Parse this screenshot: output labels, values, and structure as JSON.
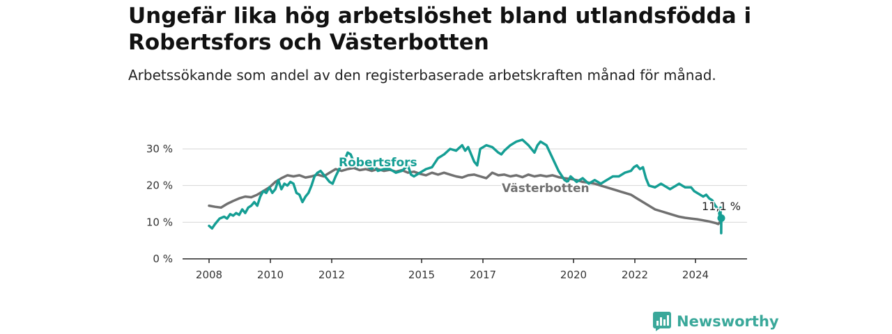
{
  "title": "Ungefär lika hög arbetslöshet bland utlandsfödda i Robertsfors och Västerbotten",
  "subtitle": "Arbetssökande som andel av den registerbaserade arbetskraften månad för månad.",
  "brand": {
    "name": "Newsworthy",
    "color": "#3aa89a",
    "icon": "newsworthy-logo-icon"
  },
  "chart_data": {
    "type": "line",
    "x_ticks": [
      "2008",
      "2010",
      "2012",
      "2015",
      "2017",
      "2020",
      "2022",
      "2024"
    ],
    "y_ticks": [
      "0 %",
      "10 %",
      "20 %",
      "30 %"
    ],
    "ylim": [
      0,
      30
    ],
    "xlim": [
      2008.0,
      2025.0
    ],
    "grid": true,
    "end_label": "11,1 %",
    "series": [
      {
        "name": "Robertsfors",
        "color": "#159e94",
        "points": [
          [
            2008.0,
            9.0
          ],
          [
            2008.1,
            8.3
          ],
          [
            2008.2,
            9.5
          ],
          [
            2008.35,
            11.0
          ],
          [
            2008.5,
            11.5
          ],
          [
            2008.6,
            11.0
          ],
          [
            2008.7,
            12.2
          ],
          [
            2008.8,
            11.8
          ],
          [
            2008.9,
            12.5
          ],
          [
            2009.0,
            12.0
          ],
          [
            2009.1,
            13.5
          ],
          [
            2009.2,
            12.5
          ],
          [
            2009.3,
            14.0
          ],
          [
            2009.4,
            14.5
          ],
          [
            2009.5,
            15.5
          ],
          [
            2009.6,
            14.5
          ],
          [
            2009.7,
            17.0
          ],
          [
            2009.8,
            18.5
          ],
          [
            2009.9,
            18.0
          ],
          [
            2010.0,
            19.5
          ],
          [
            2010.1,
            18.0
          ],
          [
            2010.2,
            19.0
          ],
          [
            2010.3,
            21.5
          ],
          [
            2010.4,
            19.0
          ],
          [
            2010.5,
            20.5
          ],
          [
            2010.6,
            20.0
          ],
          [
            2010.7,
            21.0
          ],
          [
            2010.8,
            20.5
          ],
          [
            2010.9,
            18.0
          ],
          [
            2011.0,
            17.5
          ],
          [
            2011.1,
            15.5
          ],
          [
            2011.2,
            17.0
          ],
          [
            2011.3,
            18.0
          ],
          [
            2011.4,
            20.0
          ],
          [
            2011.5,
            22.5
          ],
          [
            2011.6,
            23.5
          ],
          [
            2011.7,
            24.0
          ],
          [
            2011.8,
            23.0
          ],
          [
            2011.9,
            22.0
          ],
          [
            2012.0,
            21.0
          ],
          [
            2012.1,
            20.5
          ],
          [
            2012.2,
            22.5
          ],
          [
            2012.35,
            25.0
          ],
          [
            2012.5,
            27.0
          ],
          [
            2012.6,
            29.0
          ],
          [
            2012.7,
            28.5
          ],
          [
            2012.8,
            26.5
          ],
          [
            2012.9,
            25.0
          ],
          [
            2013.0,
            26.0
          ],
          [
            2013.2,
            25.5
          ],
          [
            2013.4,
            24.5
          ],
          [
            2013.5,
            25.5
          ],
          [
            2013.6,
            24.0
          ],
          [
            2013.8,
            24.5
          ],
          [
            2014.0,
            24.5
          ],
          [
            2014.2,
            23.5
          ],
          [
            2014.4,
            24.0
          ],
          [
            2014.6,
            25.5
          ],
          [
            2014.7,
            23.0
          ],
          [
            2014.8,
            22.5
          ],
          [
            2015.0,
            23.5
          ],
          [
            2015.2,
            24.5
          ],
          [
            2015.4,
            25.0
          ],
          [
            2015.6,
            27.5
          ],
          [
            2015.8,
            28.5
          ],
          [
            2016.0,
            30.0
          ],
          [
            2016.2,
            29.5
          ],
          [
            2016.4,
            31.0
          ],
          [
            2016.5,
            29.5
          ],
          [
            2016.6,
            30.5
          ],
          [
            2016.8,
            26.5
          ],
          [
            2016.9,
            25.5
          ],
          [
            2017.0,
            30.0
          ],
          [
            2017.2,
            31.0
          ],
          [
            2017.4,
            30.5
          ],
          [
            2017.6,
            29.0
          ],
          [
            2017.7,
            28.5
          ],
          [
            2017.8,
            29.5
          ],
          [
            2018.0,
            31.0
          ],
          [
            2018.2,
            32.0
          ],
          [
            2018.4,
            32.5
          ],
          [
            2018.6,
            31.0
          ],
          [
            2018.8,
            29.0
          ],
          [
            2018.9,
            31.0
          ],
          [
            2019.0,
            32.0
          ],
          [
            2019.2,
            31.0
          ],
          [
            2019.4,
            27.5
          ],
          [
            2019.6,
            24.0
          ],
          [
            2019.8,
            21.5
          ],
          [
            2019.9,
            21.0
          ],
          [
            2020.0,
            22.5
          ],
          [
            2020.2,
            21.0
          ],
          [
            2020.4,
            22.0
          ],
          [
            2020.6,
            20.5
          ],
          [
            2020.8,
            21.5
          ],
          [
            2021.0,
            20.5
          ],
          [
            2021.2,
            21.5
          ],
          [
            2021.4,
            22.5
          ],
          [
            2021.6,
            22.5
          ],
          [
            2021.8,
            23.5
          ],
          [
            2022.0,
            24.0
          ],
          [
            2022.1,
            25.0
          ],
          [
            2022.2,
            25.5
          ],
          [
            2022.3,
            24.5
          ],
          [
            2022.4,
            25.0
          ],
          [
            2022.5,
            22.0
          ],
          [
            2022.6,
            20.0
          ],
          [
            2022.8,
            19.5
          ],
          [
            2023.0,
            20.5
          ],
          [
            2023.2,
            19.5
          ],
          [
            2023.3,
            19.0
          ],
          [
            2023.5,
            20.0
          ],
          [
            2023.6,
            20.5
          ],
          [
            2023.8,
            19.5
          ],
          [
            2024.0,
            19.5
          ],
          [
            2024.1,
            18.5
          ],
          [
            2024.2,
            18.0
          ],
          [
            2024.4,
            17.0
          ],
          [
            2024.5,
            17.5
          ],
          [
            2024.6,
            16.5
          ],
          [
            2024.7,
            16.0
          ],
          [
            2024.8,
            14.5
          ],
          [
            2024.9,
            13.5
          ],
          [
            2024.92,
            13.0
          ],
          [
            2024.94,
            12.0
          ],
          [
            2024.95,
            11.5
          ],
          [
            2024.96,
            12.5
          ],
          [
            2024.97,
            13.0
          ],
          [
            2024.975,
            14.0
          ],
          [
            2024.98,
            12.5
          ],
          [
            2024.985,
            11.0
          ],
          [
            2024.99,
            10.5
          ],
          [
            2024.995,
            10.0
          ],
          [
            2024.997,
            9.0
          ],
          [
            2024.998,
            7.0
          ],
          [
            2024.999,
            9.5
          ],
          [
            2025.0,
            11.1
          ]
        ]
      },
      {
        "name": "Västerbotten",
        "color": "#707070",
        "points": [
          [
            2008.0,
            14.5
          ],
          [
            2008.2,
            14.2
          ],
          [
            2008.4,
            14.0
          ],
          [
            2008.6,
            15.0
          ],
          [
            2008.8,
            15.8
          ],
          [
            2009.0,
            16.5
          ],
          [
            2009.2,
            17.0
          ],
          [
            2009.4,
            16.8
          ],
          [
            2009.6,
            17.5
          ],
          [
            2009.8,
            18.5
          ],
          [
            2010.0,
            19.5
          ],
          [
            2010.2,
            21.0
          ],
          [
            2010.4,
            22.0
          ],
          [
            2010.6,
            22.8
          ],
          [
            2010.8,
            22.5
          ],
          [
            2011.0,
            22.8
          ],
          [
            2011.2,
            22.2
          ],
          [
            2011.4,
            22.5
          ],
          [
            2011.6,
            23.0
          ],
          [
            2011.8,
            22.5
          ],
          [
            2012.0,
            23.5
          ],
          [
            2012.2,
            24.5
          ],
          [
            2012.4,
            24.0
          ],
          [
            2012.6,
            24.5
          ],
          [
            2012.8,
            24.8
          ],
          [
            2013.0,
            24.2
          ],
          [
            2013.2,
            24.5
          ],
          [
            2013.4,
            24.0
          ],
          [
            2013.6,
            24.5
          ],
          [
            2013.8,
            24.0
          ],
          [
            2014.0,
            24.3
          ],
          [
            2014.2,
            23.8
          ],
          [
            2014.4,
            24.2
          ],
          [
            2014.6,
            23.5
          ],
          [
            2014.8,
            23.8
          ],
          [
            2015.0,
            23.2
          ],
          [
            2015.2,
            22.8
          ],
          [
            2015.4,
            23.5
          ],
          [
            2015.6,
            23.0
          ],
          [
            2015.8,
            23.5
          ],
          [
            2016.0,
            23.0
          ],
          [
            2016.2,
            22.5
          ],
          [
            2016.4,
            22.2
          ],
          [
            2016.6,
            22.8
          ],
          [
            2016.8,
            23.0
          ],
          [
            2017.0,
            22.5
          ],
          [
            2017.2,
            22.0
          ],
          [
            2017.4,
            23.5
          ],
          [
            2017.6,
            22.8
          ],
          [
            2017.8,
            23.0
          ],
          [
            2018.0,
            22.5
          ],
          [
            2018.2,
            22.8
          ],
          [
            2018.4,
            22.3
          ],
          [
            2018.6,
            23.0
          ],
          [
            2018.8,
            22.5
          ],
          [
            2019.0,
            22.8
          ],
          [
            2019.2,
            22.5
          ],
          [
            2019.4,
            22.8
          ],
          [
            2019.6,
            22.3
          ],
          [
            2019.8,
            22.0
          ],
          [
            2020.0,
            21.8
          ],
          [
            2020.2,
            21.5
          ],
          [
            2020.4,
            21.0
          ],
          [
            2020.6,
            20.8
          ],
          [
            2020.8,
            20.5
          ],
          [
            2021.0,
            20.0
          ],
          [
            2021.2,
            19.5
          ],
          [
            2021.4,
            19.0
          ],
          [
            2021.6,
            18.5
          ],
          [
            2021.8,
            18.0
          ],
          [
            2022.0,
            17.5
          ],
          [
            2022.2,
            16.5
          ],
          [
            2022.4,
            15.5
          ],
          [
            2022.6,
            14.5
          ],
          [
            2022.8,
            13.5
          ],
          [
            2023.0,
            13.0
          ],
          [
            2023.2,
            12.5
          ],
          [
            2023.4,
            12.0
          ],
          [
            2023.6,
            11.5
          ],
          [
            2023.8,
            11.2
          ],
          [
            2024.0,
            11.0
          ],
          [
            2024.2,
            10.8
          ],
          [
            2024.4,
            10.5
          ],
          [
            2024.6,
            10.2
          ],
          [
            2024.8,
            9.8
          ],
          [
            2024.9,
            9.5
          ],
          [
            2025.0,
            10.5
          ]
        ]
      }
    ]
  }
}
